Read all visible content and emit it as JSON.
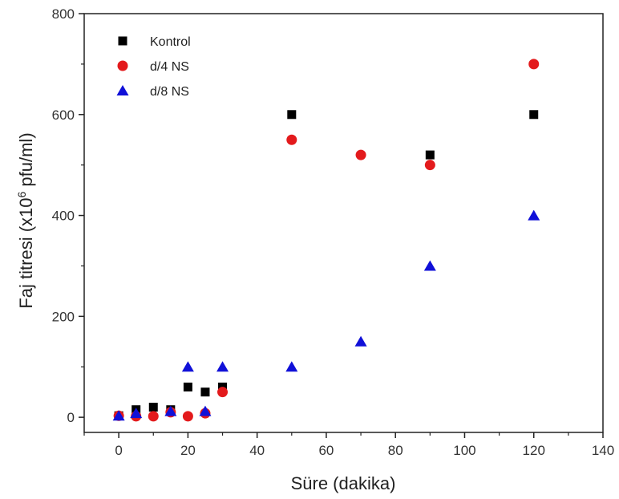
{
  "chart_data": {
    "type": "scatter",
    "title": "",
    "xlabel": "Süre (dakika)",
    "ylabel_parts": {
      "pre": "Faj titresi (x10",
      "sup": "6",
      "post": " pfu/ml)"
    },
    "xlim": [
      -10,
      140
    ],
    "ylim": [
      -30,
      800
    ],
    "x_ticks": [
      0,
      20,
      40,
      60,
      80,
      100,
      120,
      140
    ],
    "y_ticks": [
      0,
      200,
      400,
      600,
      800
    ],
    "grid": false,
    "legend_position": "top-left",
    "series": [
      {
        "name": "Kontrol",
        "marker": "square",
        "color": "#000000",
        "points": [
          [
            0,
            3
          ],
          [
            5,
            15
          ],
          [
            10,
            20
          ],
          [
            15,
            15
          ],
          [
            20,
            60
          ],
          [
            25,
            50
          ],
          [
            30,
            60
          ],
          [
            50,
            600
          ],
          [
            90,
            520
          ],
          [
            120,
            600
          ]
        ]
      },
      {
        "name": "d/4 NS",
        "marker": "circle",
        "color": "#e31a1c",
        "points": [
          [
            0,
            3
          ],
          [
            5,
            2
          ],
          [
            10,
            2
          ],
          [
            15,
            10
          ],
          [
            20,
            2
          ],
          [
            25,
            8
          ],
          [
            30,
            50
          ],
          [
            50,
            550
          ],
          [
            70,
            520
          ],
          [
            90,
            500
          ],
          [
            120,
            700
          ]
        ]
      },
      {
        "name": "d/8 NS",
        "marker": "triangle",
        "color": "#1010d8",
        "points": [
          [
            0,
            3
          ],
          [
            5,
            8
          ],
          [
            15,
            12
          ],
          [
            20,
            100
          ],
          [
            25,
            12
          ],
          [
            30,
            100
          ],
          [
            50,
            100
          ],
          [
            70,
            150
          ],
          [
            90,
            300
          ],
          [
            120,
            400
          ]
        ]
      }
    ]
  }
}
